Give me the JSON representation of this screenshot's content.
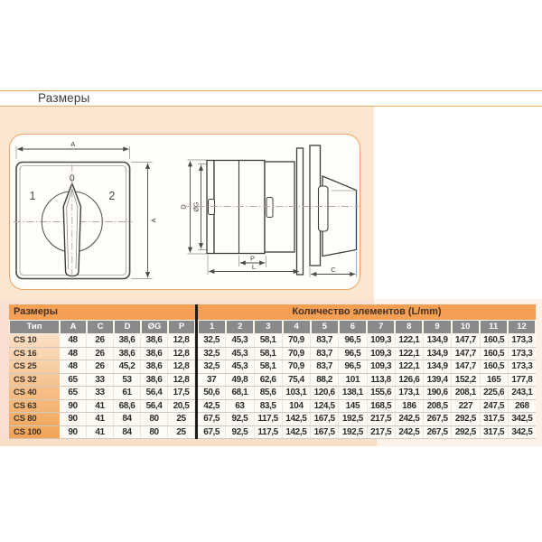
{
  "page": {
    "heading": "Размеры"
  },
  "drawing": {
    "front_view": {
      "dim_width_label": "A",
      "dim_height_label": "A",
      "position_left": "1",
      "position_center": "0",
      "position_right": "2"
    },
    "side_view": {
      "dim_body_diameter_label": "D",
      "dim_shaft_diameter_label": "ØG",
      "dim_section_pitch_label": "P",
      "dim_length_label": "L",
      "dim_handle_depth_label": "C"
    }
  },
  "table": {
    "group_headers": {
      "dimensions": "Размеры",
      "elements": "Количество элементов (L/mm)"
    },
    "dim_columns": [
      "Тип",
      "A",
      "C",
      "D",
      "ØG",
      "P"
    ],
    "element_columns": [
      "1",
      "2",
      "3",
      "4",
      "5",
      "6",
      "7",
      "8",
      "9",
      "10",
      "11",
      "12"
    ],
    "rows": [
      {
        "type": "CS 10",
        "dims": [
          "48",
          "26",
          "38,6",
          "38,6",
          "12,8"
        ],
        "elements": [
          "32,5",
          "45,3",
          "58,1",
          "70,9",
          "83,7",
          "96,5",
          "109,3",
          "122,1",
          "134,9",
          "147,7",
          "160,5",
          "173,3"
        ]
      },
      {
        "type": "CS 16",
        "dims": [
          "48",
          "26",
          "38,6",
          "38,6",
          "12,8"
        ],
        "elements": [
          "32,5",
          "45,3",
          "58,1",
          "70,9",
          "83,7",
          "96,5",
          "109,3",
          "122,1",
          "134,9",
          "147,7",
          "160,5",
          "173,3"
        ]
      },
      {
        "type": "CS 25",
        "dims": [
          "48",
          "26",
          "45,2",
          "38,6",
          "12,8"
        ],
        "elements": [
          "32,5",
          "45,3",
          "58,1",
          "70,9",
          "83,7",
          "96,5",
          "109,3",
          "122,1",
          "134,9",
          "147,7",
          "160,5",
          "173,3"
        ]
      },
      {
        "type": "CS 32",
        "dims": [
          "65",
          "33",
          "53",
          "38,6",
          "12,8"
        ],
        "elements": [
          "37",
          "49,8",
          "62,6",
          "75,4",
          "88,2",
          "101",
          "113,8",
          "126,6",
          "139,4",
          "152,2",
          "165",
          "177,8"
        ]
      },
      {
        "type": "CS 40",
        "dims": [
          "65",
          "33",
          "61",
          "56,4",
          "17,5"
        ],
        "elements": [
          "50,6",
          "68,1",
          "85,6",
          "103,1",
          "120,6",
          "138,1",
          "155,6",
          "173,1",
          "190,6",
          "208,1",
          "225,6",
          "243,1"
        ]
      },
      {
        "type": "CS 63",
        "dims": [
          "90",
          "41",
          "68,6",
          "56,4",
          "20,5"
        ],
        "elements": [
          "42,5",
          "63",
          "83,5",
          "104",
          "124,5",
          "145",
          "168,5",
          "186",
          "208,5",
          "227",
          "247,5",
          "268"
        ]
      },
      {
        "type": "CS 80",
        "dims": [
          "90",
          "41",
          "84",
          "80",
          "25"
        ],
        "elements": [
          "67,5",
          "92,5",
          "117,5",
          "142,5",
          "167,5",
          "192,5",
          "217,5",
          "242,5",
          "267,5",
          "292,5",
          "317,5",
          "342,5"
        ]
      },
      {
        "type": "CS 100",
        "dims": [
          "90",
          "41",
          "84",
          "80",
          "25"
        ],
        "elements": [
          "67,5",
          "92,5",
          "117,5",
          "142,5",
          "167,5",
          "192,5",
          "217,5",
          "242,5",
          "267,5",
          "292,5",
          "317,5",
          "342,5"
        ]
      }
    ]
  },
  "colors": {
    "rule_orange": "#E7A360",
    "drawing_bg": "#FBE6D0",
    "panel_border": "#EFA263",
    "table_header_orange": "#F4A054",
    "table_header_gray": "#8A8A8A",
    "divider_black": "#1E1C1A",
    "type_column_gradient_top": "#FBE0C6",
    "type_column_gradient_bottom": "#F1A254"
  }
}
